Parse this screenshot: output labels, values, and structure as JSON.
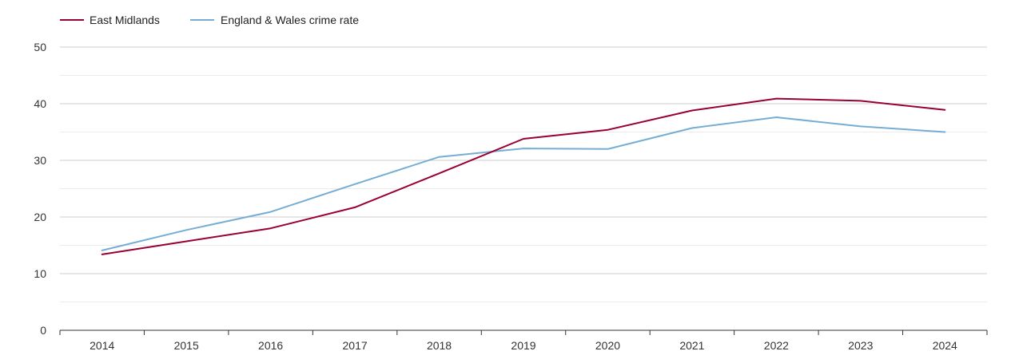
{
  "chart_data": {
    "type": "line",
    "title": "",
    "xlabel": "",
    "ylabel": "",
    "categories": [
      "2014",
      "2015",
      "2016",
      "2017",
      "2018",
      "2019",
      "2020",
      "2021",
      "2022",
      "2023",
      "2024"
    ],
    "ylim": [
      0,
      50
    ],
    "yticks": [
      "0",
      "10",
      "20",
      "30",
      "40",
      "50"
    ],
    "grid": true,
    "legend_position": "top-left",
    "series": [
      {
        "name": "East Midlands",
        "color": "#990033",
        "values": [
          13.4,
          15.7,
          18.0,
          21.7,
          27.7,
          33.8,
          35.4,
          38.8,
          40.9,
          40.5,
          38.9
        ]
      },
      {
        "name": "England & Wales crime rate",
        "color": "#75add4",
        "values": [
          14.1,
          17.7,
          20.9,
          25.8,
          30.6,
          32.1,
          32.0,
          35.7,
          37.6,
          36.0,
          35.0
        ]
      }
    ]
  }
}
